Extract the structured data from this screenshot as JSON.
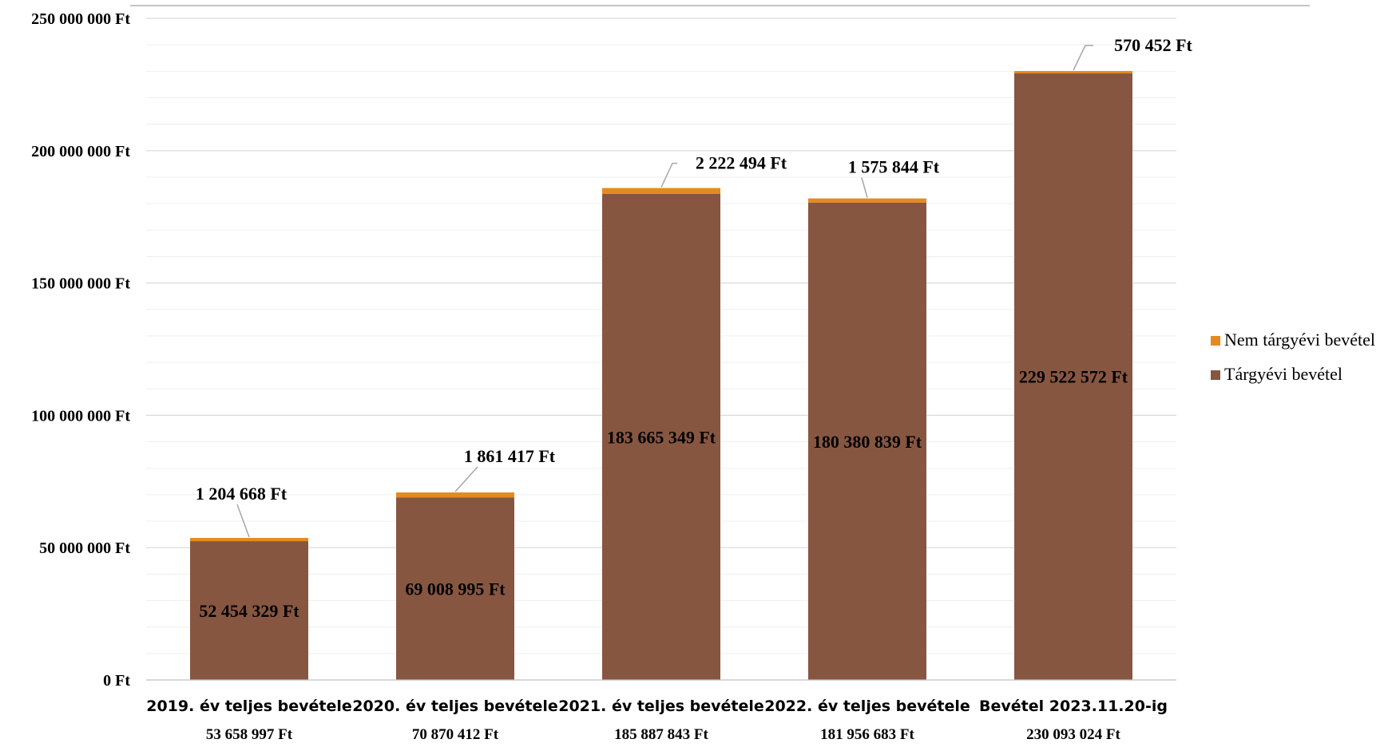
{
  "colors": {
    "targyevi": "#875641",
    "nem_targyevi": "#E58A1F",
    "gridline": "#d9d9d9",
    "leader": "#a6a6a6"
  },
  "chart_data": {
    "type": "bar",
    "stacked": true,
    "categories": [
      "2019. év teljes bevétele",
      "2020. év teljes bevétele",
      "2021. év teljes bevétele",
      "2022. év teljes bevétele",
      "Bevétel 2023.11.20-ig"
    ],
    "totals": [
      "53 658 997 Ft",
      "70 870 412 Ft",
      "185 887 843 Ft",
      "181 956 683 Ft",
      "230 093 024 Ft"
    ],
    "series": [
      {
        "name": "Tárgyévi bevétel",
        "color": "#875641",
        "values": [
          52454329,
          69008995,
          183665349,
          180380839,
          229522572
        ],
        "labels": [
          "52 454 329 Ft",
          "69 008 995 Ft",
          "183 665 349 Ft",
          "180 380 839 Ft",
          "229 522 572 Ft"
        ]
      },
      {
        "name": "Nem tárgyévi bevétel",
        "color": "#E58A1F",
        "values": [
          1204668,
          1861417,
          2222494,
          1575844,
          570452
        ],
        "labels": [
          "1 204 668 Ft",
          "1 861 417 Ft",
          "2 222 494 Ft",
          "1 575 844 Ft",
          "570 452 Ft"
        ]
      }
    ],
    "ylim": [
      0,
      250000000
    ],
    "yticks": [
      0,
      50000000,
      100000000,
      150000000,
      200000000,
      250000000
    ],
    "ytick_labels": [
      "0 Ft",
      "50 000 000 Ft",
      "100 000 000 Ft",
      "150 000 000 Ft",
      "200 000 000 Ft",
      "250 000 000 Ft"
    ],
    "grid": true,
    "legend_position": "right",
    "legend": [
      "Nem tárgyévi bevétel",
      "Tárgyévi bevétel"
    ]
  }
}
